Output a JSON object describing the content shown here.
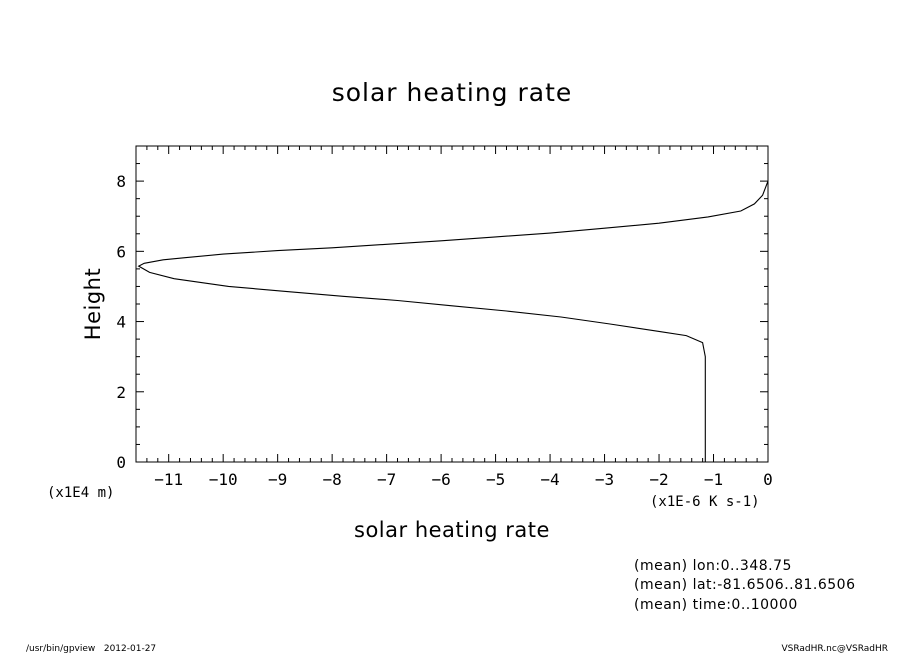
{
  "chart_data": {
    "type": "line",
    "title": "solar heating rate",
    "xlabel": "solar heating rate",
    "ylabel": "Height",
    "x_unit": "(x1E-6 K s-1)",
    "y_unit": "(x1E4 m)",
    "xlim": [
      -11.6,
      0
    ],
    "ylim": [
      0,
      9
    ],
    "x_ticks": [
      -11,
      -10,
      -9,
      -8,
      -7,
      -6,
      -5,
      -4,
      -3,
      -2,
      -1,
      0
    ],
    "y_ticks": [
      0,
      2,
      4,
      6,
      8
    ],
    "grid": false,
    "series": [
      {
        "x": [
          -1.15,
          -1.15,
          -1.15,
          -1.15,
          -1.2,
          -1.5,
          -2.0,
          -2.9,
          -3.8,
          -4.8,
          -5.8,
          -6.8,
          -7.8,
          -8.8,
          -9.9,
          -10.9,
          -11.35,
          -11.55,
          -11.45,
          -11.1,
          -10.7,
          -10.0,
          -9.0,
          -8.0,
          -7.0,
          -6.0,
          -5.0,
          -4.0,
          -3.0,
          -2.0,
          -1.1,
          -0.5,
          -0.25,
          -0.1,
          0.0
        ],
        "y": [
          0.0,
          1.0,
          2.0,
          3.0,
          3.4,
          3.6,
          3.72,
          3.93,
          4.13,
          4.3,
          4.45,
          4.6,
          4.72,
          4.85,
          5.0,
          5.22,
          5.4,
          5.58,
          5.66,
          5.76,
          5.82,
          5.92,
          6.02,
          6.1,
          6.2,
          6.3,
          6.41,
          6.52,
          6.66,
          6.8,
          6.98,
          7.15,
          7.35,
          7.6,
          8.0
        ]
      }
    ]
  },
  "annotations": [
    "(mean) lon:0..348.75",
    "(mean) lat:-81.6506..81.6506",
    "(mean) time:0..10000"
  ],
  "footer": {
    "left": "/usr/bin/gpview   2012-01-27",
    "right": "VSRadHR.nc@VSRadHR"
  }
}
